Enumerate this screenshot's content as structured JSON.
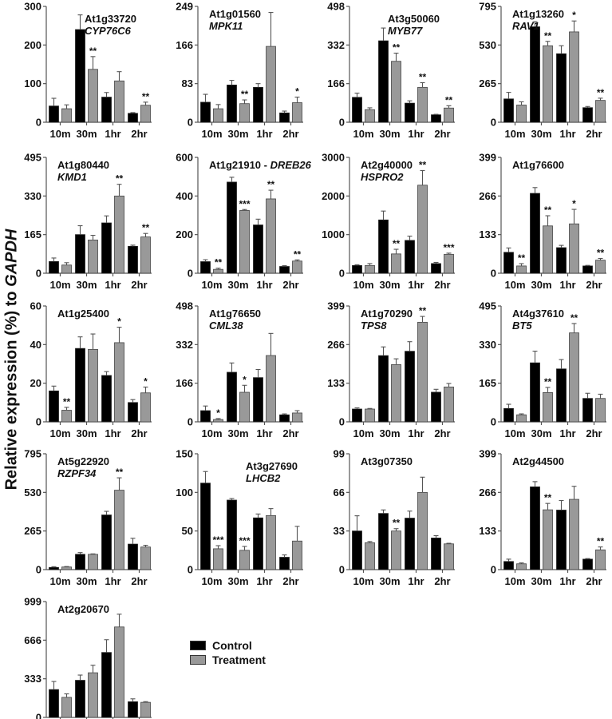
{
  "chart_data": {
    "type": "bar",
    "ylabel_prefix": "Relative expression (%) to ",
    "ylabel_italic": "GAPDH",
    "categories": [
      "10m",
      "30m",
      "1hr",
      "2hr"
    ],
    "legend": [
      {
        "name": "Control",
        "color": "#000000"
      },
      {
        "name": "Treatment",
        "color": "#999999"
      }
    ],
    "legend_placement": "bottom-center",
    "panels": [
      {
        "id": "At1g33720",
        "gene": "CYP76C6",
        "title_sep": "newline",
        "ylim": [
          0,
          300
        ],
        "yticks": [
          0,
          100,
          200,
          300
        ],
        "control": [
          42,
          240,
          65,
          23
        ],
        "control_err": [
          20,
          38,
          12,
          2
        ],
        "treatment": [
          35,
          137,
          107,
          44
        ],
        "treatment_err": [
          10,
          33,
          24,
          8
        ],
        "sig": [
          "",
          "**",
          "",
          "**"
        ]
      },
      {
        "id": "At1g01560",
        "gene": "MPK11",
        "title_sep": "newline",
        "ylim": [
          0,
          249
        ],
        "yticks": [
          0,
          83,
          166,
          249
        ],
        "control": [
          43,
          80,
          75,
          20
        ],
        "control_err": [
          17,
          10,
          8,
          4
        ],
        "treatment": [
          29,
          40,
          163,
          42
        ],
        "treatment_err": [
          9,
          8,
          73,
          12
        ],
        "sig": [
          "",
          "**",
          "",
          "*"
        ]
      },
      {
        "id": "At3g50060",
        "gene": "MYB77",
        "title_sep": "newline",
        "ylim": [
          0,
          498
        ],
        "yticks": [
          0,
          166,
          332,
          498
        ],
        "control": [
          107,
          350,
          82,
          32
        ],
        "control_err": [
          18,
          55,
          10,
          2
        ],
        "treatment": [
          54,
          262,
          150,
          61
        ],
        "treatment_err": [
          8,
          35,
          20,
          10
        ],
        "sig": [
          "",
          "**",
          "**",
          "**"
        ]
      },
      {
        "id": "At1g13260",
        "gene": "RAV1",
        "title_sep": "newline",
        "ylim": [
          0,
          795
        ],
        "yticks": [
          0,
          265,
          530,
          795
        ],
        "control": [
          160,
          655,
          470,
          100
        ],
        "control_err": [
          45,
          35,
          55,
          8
        ],
        "treatment": [
          118,
          525,
          620,
          150
        ],
        "treatment_err": [
          22,
          30,
          75,
          15
        ],
        "sig": [
          "",
          "**",
          "*",
          "**"
        ]
      },
      {
        "id": "At1g80440",
        "gene": "KMD1",
        "title_sep": "newline",
        "ylim": [
          0,
          495
        ],
        "yticks": [
          0,
          165,
          330,
          495
        ],
        "control": [
          50,
          165,
          215,
          115
        ],
        "control_err": [
          15,
          38,
          30,
          5
        ],
        "treatment": [
          35,
          142,
          330,
          155
        ],
        "treatment_err": [
          10,
          20,
          50,
          15
        ],
        "sig": [
          "",
          "",
          "**",
          "**"
        ]
      },
      {
        "id": "At1g21910",
        "gene": "DREB26",
        "title_sep": " - ",
        "ylim": [
          0,
          600
        ],
        "yticks": [
          0,
          200,
          400,
          600
        ],
        "control": [
          60,
          472,
          250,
          35
        ],
        "control_err": [
          10,
          25,
          30,
          4
        ],
        "treatment": [
          20,
          325,
          385,
          63
        ],
        "treatment_err": [
          6,
          5,
          45,
          6
        ],
        "sig": [
          "**",
          "***",
          "**",
          "**"
        ]
      },
      {
        "id": "At2g40000",
        "gene": "HSPRO2",
        "title_sep": "newline",
        "ylim": [
          0,
          3000
        ],
        "yticks": [
          0,
          1000,
          2000,
          3000
        ],
        "control": [
          200,
          1380,
          850,
          250
        ],
        "control_err": [
          20,
          230,
          110,
          30
        ],
        "treatment": [
          200,
          500,
          2280,
          490
        ],
        "treatment_err": [
          50,
          120,
          380,
          30
        ],
        "sig": [
          "",
          "**",
          "**",
          "***"
        ]
      },
      {
        "id": "At1g76600",
        "gene": "",
        "title_sep": "newline",
        "ylim": [
          0,
          399
        ],
        "yticks": [
          0,
          133,
          266,
          399
        ],
        "control": [
          72,
          275,
          88,
          25
        ],
        "control_err": [
          15,
          20,
          8,
          2
        ],
        "treatment": [
          25,
          163,
          170,
          45
        ],
        "treatment_err": [
          8,
          35,
          50,
          6
        ],
        "sig": [
          "**",
          "**",
          "*",
          "**"
        ]
      },
      {
        "id": "At1g25400",
        "gene": "",
        "title_sep": "newline",
        "ylim": [
          0,
          60
        ],
        "yticks": [
          0,
          20,
          40,
          60
        ],
        "control": [
          16,
          38,
          24,
          10
        ],
        "control_err": [
          2.5,
          6,
          2,
          1.5
        ],
        "treatment": [
          6,
          37.5,
          41,
          15
        ],
        "treatment_err": [
          1.5,
          8,
          8,
          3
        ],
        "sig": [
          "**",
          "",
          "*",
          "*"
        ]
      },
      {
        "id": "At1g76650",
        "gene": "CML38",
        "title_sep": "newline",
        "ylim": [
          0,
          498
        ],
        "yticks": [
          0,
          166,
          332,
          498
        ],
        "control": [
          48,
          213,
          190,
          30
        ],
        "control_err": [
          20,
          40,
          35,
          4
        ],
        "treatment": [
          10,
          127,
          285,
          38
        ],
        "treatment_err": [
          4,
          30,
          95,
          10
        ],
        "sig": [
          "*",
          "*",
          "",
          ""
        ]
      },
      {
        "id": "At1g70290",
        "gene": "TPS8",
        "title_sep": "newline",
        "ylim": [
          0,
          399
        ],
        "yticks": [
          0,
          133,
          266,
          399
        ],
        "control": [
          44,
          228,
          243,
          102
        ],
        "control_err": [
          4,
          30,
          33,
          10
        ],
        "treatment": [
          44,
          197,
          343,
          120
        ],
        "treatment_err": [
          2,
          20,
          20,
          12
        ],
        "sig": [
          "",
          "",
          "**",
          ""
        ]
      },
      {
        "id": "At4g37610",
        "gene": "BT5",
        "title_sep": "newline",
        "ylim": [
          0,
          495
        ],
        "yticks": [
          0,
          165,
          330,
          495
        ],
        "control": [
          57,
          252,
          226,
          100
        ],
        "control_err": [
          18,
          50,
          40,
          22
        ],
        "treatment": [
          30,
          125,
          380,
          100
        ],
        "treatment_err": [
          4,
          22,
          40,
          18
        ],
        "sig": [
          "",
          "**",
          "**",
          ""
        ]
      },
      {
        "id": "At5g22920",
        "gene": "RZPF34",
        "title_sep": "newline",
        "ylim": [
          0,
          795
        ],
        "yticks": [
          0,
          265,
          530,
          795
        ],
        "control": [
          15,
          105,
          375,
          175
        ],
        "control_err": [
          5,
          12,
          25,
          40
        ],
        "treatment": [
          18,
          105,
          545,
          155
        ],
        "treatment_err": [
          3,
          3,
          85,
          12
        ],
        "sig": [
          "",
          "",
          "**",
          ""
        ]
      },
      {
        "id": "At3g27690",
        "gene": "LHCB2",
        "title_sep": "newline",
        "ylim": [
          0,
          150
        ],
        "yticks": [
          0,
          50,
          100,
          150
        ],
        "control": [
          112,
          90,
          67,
          16
        ],
        "control_err": [
          15,
          2,
          5,
          3
        ],
        "treatment": [
          27,
          25,
          70,
          37
        ],
        "treatment_err": [
          4,
          5,
          9,
          19
        ],
        "sig": [
          "***",
          "***",
          "",
          ""
        ]
      },
      {
        "id": "At3g07350",
        "gene": "",
        "title_sep": "newline",
        "ylim": [
          0,
          99
        ],
        "yticks": [
          0,
          33,
          66,
          99
        ],
        "control": [
          33,
          48,
          44,
          27
        ],
        "control_err": [
          13,
          3,
          6,
          2
        ],
        "treatment": [
          23,
          33,
          66,
          22
        ],
        "treatment_err": [
          1,
          2,
          13,
          0.5
        ],
        "sig": [
          "",
          "**",
          "",
          ""
        ]
      },
      {
        "id": "At2g44500",
        "gene": "",
        "title_sep": "newline",
        "ylim": [
          0,
          399
        ],
        "yticks": [
          0,
          133,
          266,
          399
        ],
        "control": [
          28,
          285,
          205,
          36
        ],
        "control_err": [
          8,
          18,
          33,
          2
        ],
        "treatment": [
          20,
          206,
          242,
          68
        ],
        "treatment_err": [
          3,
          22,
          45,
          10
        ],
        "sig": [
          "",
          "**",
          "",
          "**"
        ]
      },
      {
        "id": "At2g20670",
        "gene": "",
        "title_sep": "newline",
        "ylim": [
          0,
          999
        ],
        "yticks": [
          0,
          333,
          666,
          999
        ],
        "control": [
          240,
          320,
          560,
          135
        ],
        "control_err": [
          70,
          45,
          110,
          25
        ],
        "treatment": [
          173,
          385,
          780,
          130
        ],
        "treatment_err": [
          30,
          65,
          110,
          6
        ],
        "sig": [
          "",
          "",
          "",
          ""
        ]
      }
    ]
  }
}
